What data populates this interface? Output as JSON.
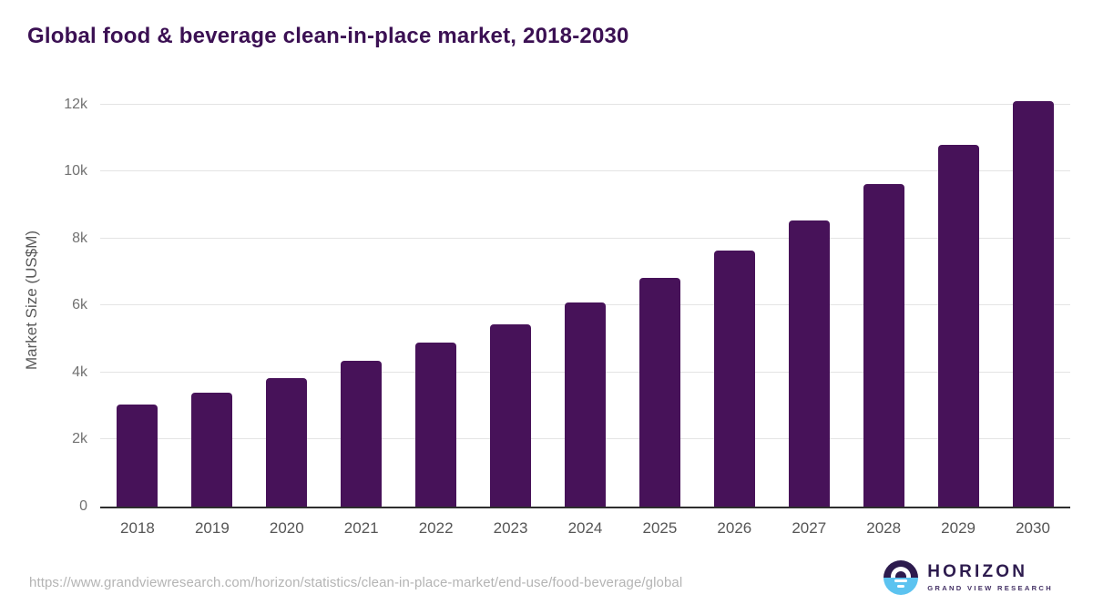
{
  "chart_data": {
    "type": "bar",
    "title": "Global food & beverage clean-in-place market, 2018-2030",
    "xlabel": "",
    "ylabel": "Market Size (US$M)",
    "categories": [
      "2018",
      "2019",
      "2020",
      "2021",
      "2022",
      "2023",
      "2024",
      "2025",
      "2026",
      "2027",
      "2028",
      "2029",
      "2030"
    ],
    "values": [
      3050,
      3410,
      3840,
      4360,
      4890,
      5450,
      6100,
      6820,
      7650,
      8550,
      9620,
      10790,
      12110
    ],
    "ylim": [
      0,
      12400
    ],
    "yticks": [
      {
        "value": 0,
        "label": "0"
      },
      {
        "value": 2000,
        "label": "2k"
      },
      {
        "value": 4000,
        "label": "4k"
      },
      {
        "value": 6000,
        "label": "6k"
      },
      {
        "value": 8000,
        "label": "8k"
      },
      {
        "value": 10000,
        "label": "10k"
      },
      {
        "value": 12000,
        "label": "12k"
      }
    ],
    "grid": "horizontal",
    "legend": "none",
    "bar_color": "#471259",
    "title_color": "#3b1053"
  },
  "footer": {
    "source_url": "https://www.grandviewresearch.com/horizon/statistics/clean-in-place-market/end-use/food-beverage/global",
    "logo": {
      "brand": "HORIZON",
      "subtext": "GRAND VIEW RESEARCH",
      "brand_color": "#2d1b4e",
      "accent_blue": "#5cc3f0"
    }
  }
}
